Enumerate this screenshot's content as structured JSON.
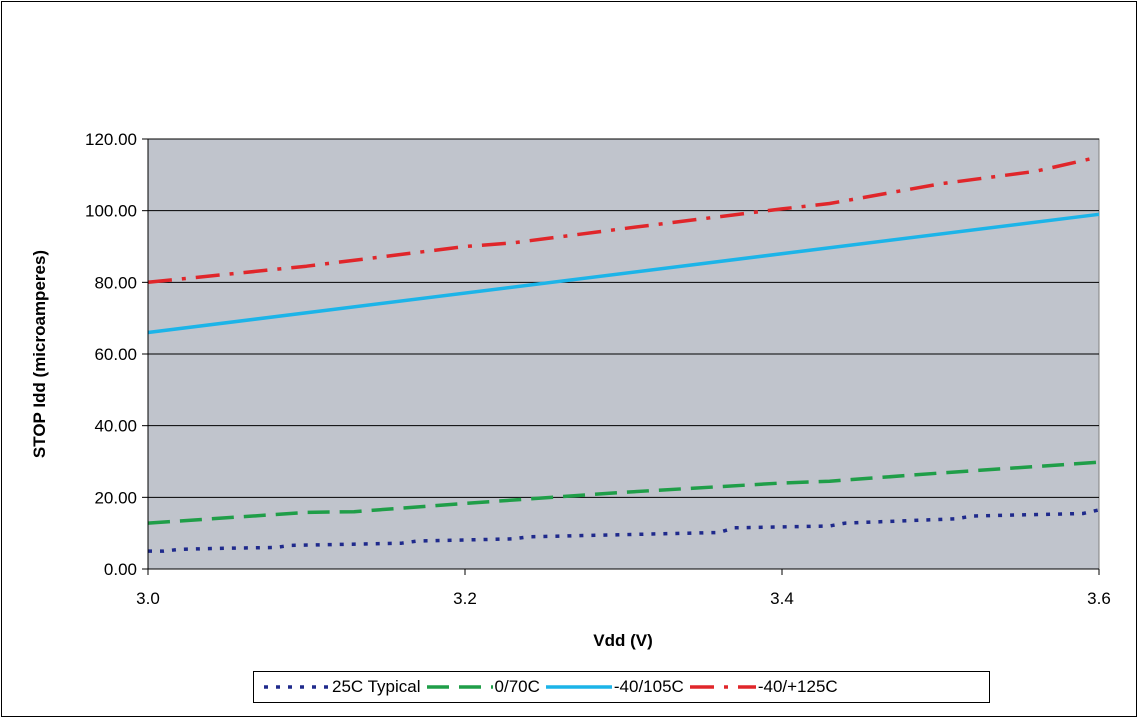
{
  "chart_data": {
    "type": "line",
    "title": "",
    "xlabel": "Vdd (V)",
    "ylabel": "STOP Idd (microamperes)",
    "xlim": [
      3.0,
      3.6
    ],
    "ylim": [
      0,
      120
    ],
    "x_ticks": [
      3.0,
      3.2,
      3.4,
      3.6
    ],
    "x_tick_labels": [
      "3.0",
      "3.2",
      "3.4",
      "3.6"
    ],
    "y_ticks": [
      0,
      20,
      40,
      60,
      80,
      100,
      120
    ],
    "y_tick_labels": [
      "0.00",
      "20.00",
      "40.00",
      "60.00",
      "80.00",
      "100.00",
      "120.00"
    ],
    "grid": true,
    "plot_background": "#c0c4cc",
    "legend_position": "bottom",
    "series": [
      {
        "name": "25C Typical",
        "color": "#1f2a8c",
        "dash": "dotted",
        "x": [
          3.0,
          3.01,
          3.02,
          3.05,
          3.08,
          3.09,
          3.16,
          3.17,
          3.23,
          3.24,
          3.36,
          3.37,
          3.43,
          3.44,
          3.51,
          3.52,
          3.59,
          3.6
        ],
        "y": [
          5,
          5,
          5.5,
          5.8,
          6,
          6.6,
          7.2,
          7.8,
          8.4,
          9,
          10.2,
          11.5,
          12,
          12.8,
          14,
          14.8,
          15.5,
          16.5
        ]
      },
      {
        "name": "0/70C",
        "color": "#1f9e48",
        "dash": "dashed",
        "x": [
          3.0,
          3.1,
          3.13,
          3.2,
          3.3,
          3.4,
          3.43,
          3.5,
          3.6
        ],
        "y": [
          12.8,
          15.8,
          16,
          18.3,
          21.4,
          24,
          24.5,
          26.8,
          29.8
        ]
      },
      {
        "name": "-40/105C",
        "color": "#1cb4e8",
        "dash": "solid",
        "x": [
          3.0,
          3.6
        ],
        "y": [
          66,
          99
        ]
      },
      {
        "name": "-40/+125C",
        "color": "#e0262a",
        "dash": "dashdot",
        "x": [
          3.0,
          3.1,
          3.2,
          3.23,
          3.3,
          3.4,
          3.43,
          3.5,
          3.56,
          3.6
        ],
        "y": [
          80,
          84.5,
          90,
          91,
          95,
          100.5,
          102,
          107.5,
          111,
          115
        ]
      }
    ]
  }
}
